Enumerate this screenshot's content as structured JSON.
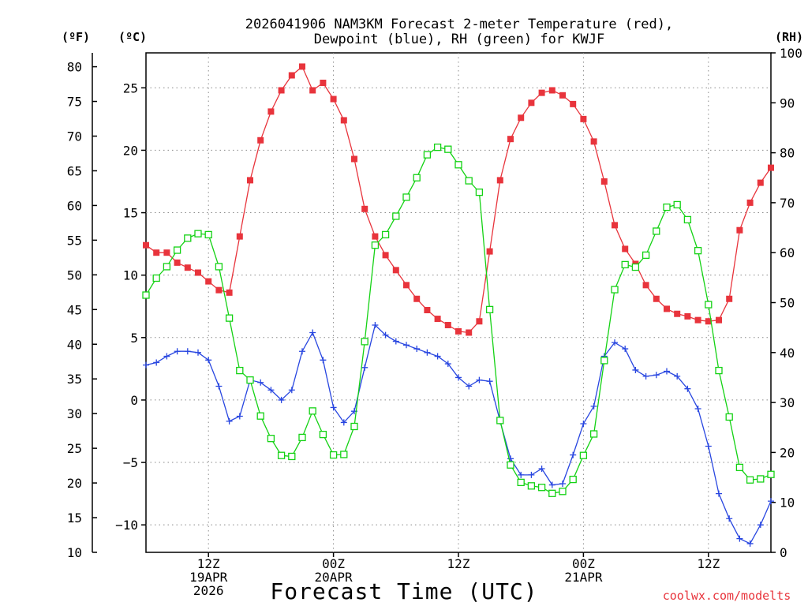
{
  "chart_data": {
    "type": "line",
    "title_line1": "2026041906 NAM3KM Forecast 2-meter Temperature (red),",
    "title_line2": "Dewpoint (blue), RH (green) for KWJF",
    "xlabel": "Forecast Time (UTC)",
    "watermark": "coolwx.com/modelts",
    "left_outer_axis_label": "(ºF)",
    "left_inner_axis_label": "(ºC)",
    "right_axis_label": "(RH)",
    "x_hours_range": [
      0,
      60
    ],
    "x_ticks": [
      {
        "hour": 6,
        "lines": [
          "12Z",
          "19APR",
          "2026"
        ]
      },
      {
        "hour": 18,
        "lines": [
          "00Z",
          "20APR"
        ]
      },
      {
        "hour": 30,
        "lines": [
          "12Z"
        ]
      },
      {
        "hour": 42,
        "lines": [
          "00Z",
          "21APR"
        ]
      },
      {
        "hour": 54,
        "lines": [
          "12Z"
        ]
      }
    ],
    "c_axis": {
      "range": [
        -12.2,
        27.8
      ],
      "ticks": [
        25,
        20,
        15,
        10,
        5,
        0,
        -5,
        -10
      ],
      "tick_labels": [
        "25",
        "20",
        "15",
        "10",
        "5",
        "0",
        "−5",
        "−10"
      ]
    },
    "f_axis": {
      "range": [
        10,
        82
      ],
      "ticks": [
        80,
        75,
        70,
        65,
        60,
        55,
        50,
        45,
        40,
        35,
        30,
        25,
        20,
        15,
        10
      ],
      "tick_labels": [
        "80",
        "75",
        "70",
        "65",
        "60",
        "55",
        "50",
        "45",
        "40",
        "35",
        "30",
        "25",
        "20",
        "15",
        "10"
      ]
    },
    "rh_axis": {
      "range": [
        0,
        100
      ],
      "ticks": [
        100,
        90,
        80,
        70,
        60,
        50,
        40,
        30,
        20,
        10,
        0
      ],
      "tick_labels": [
        "100",
        "90",
        "80",
        "70",
        "60",
        "50",
        "40",
        "30",
        "20",
        "10",
        "0"
      ]
    },
    "series": [
      {
        "name": "Temperature",
        "units": "C",
        "color": "#e8343c",
        "marker": "filled-square",
        "values": [
          12.4,
          11.8,
          11.8,
          11.0,
          10.6,
          10.2,
          9.5,
          8.8,
          8.6,
          13.1,
          17.6,
          20.8,
          23.1,
          24.8,
          26.0,
          26.7,
          24.8,
          25.4,
          24.1,
          22.4,
          19.3,
          15.3,
          13.1,
          11.6,
          10.4,
          9.2,
          8.1,
          7.2,
          6.5,
          6.0,
          5.5,
          5.4,
          6.3,
          11.9,
          17.6,
          20.9,
          22.6,
          23.8,
          24.6,
          24.8,
          24.4,
          23.7,
          22.5,
          20.7,
          17.5,
          14.0,
          12.1,
          10.9,
          9.2,
          8.1,
          7.3,
          6.9,
          6.7,
          6.4,
          6.3,
          6.4,
          8.1,
          13.6,
          15.8,
          17.4,
          18.6
        ]
      },
      {
        "name": "Dewpoint",
        "units": "C",
        "color": "#2846e0",
        "marker": "plus",
        "values": [
          2.8,
          3.0,
          3.5,
          3.9,
          3.9,
          3.8,
          3.2,
          1.1,
          -1.7,
          -1.3,
          1.6,
          1.4,
          0.8,
          0.0,
          0.8,
          3.9,
          5.4,
          3.2,
          -0.6,
          -1.8,
          -0.9,
          2.6,
          6.0,
          5.2,
          4.7,
          4.4,
          4.1,
          3.8,
          3.5,
          2.9,
          1.8,
          1.1,
          1.6,
          1.5,
          -1.7,
          -4.7,
          -6.0,
          -6.0,
          -5.5,
          -6.8,
          -6.7,
          -4.4,
          -1.9,
          -0.5,
          3.5,
          4.6,
          4.1,
          2.4,
          1.9,
          2.0,
          2.3,
          1.9,
          0.9,
          -0.7,
          -3.7,
          -7.5,
          -9.5,
          -11.1,
          -11.5,
          -10.0,
          -8.1
        ]
      },
      {
        "name": "RH",
        "units": "%",
        "color": "#14d214",
        "marker": "open-square",
        "values": [
          51.5,
          54.9,
          57.2,
          60.5,
          62.9,
          63.8,
          63.6,
          57.2,
          46.9,
          36.4,
          34.5,
          27.3,
          22.8,
          19.4,
          19.2,
          23.0,
          28.3,
          23.6,
          19.5,
          19.6,
          25.2,
          42.2,
          61.5,
          63.6,
          67.3,
          71.1,
          75.0,
          79.6,
          81.1,
          80.7,
          77.6,
          74.4,
          72.1,
          48.6,
          26.4,
          17.5,
          14.0,
          13.3,
          13.0,
          11.8,
          12.2,
          14.6,
          19.4,
          23.7,
          38.4,
          52.6,
          57.6,
          57.1,
          59.5,
          64.3,
          69.1,
          69.6,
          66.6,
          60.4,
          49.6,
          36.4,
          27.1,
          17.0,
          14.5,
          14.7,
          15.6
        ]
      }
    ]
  }
}
